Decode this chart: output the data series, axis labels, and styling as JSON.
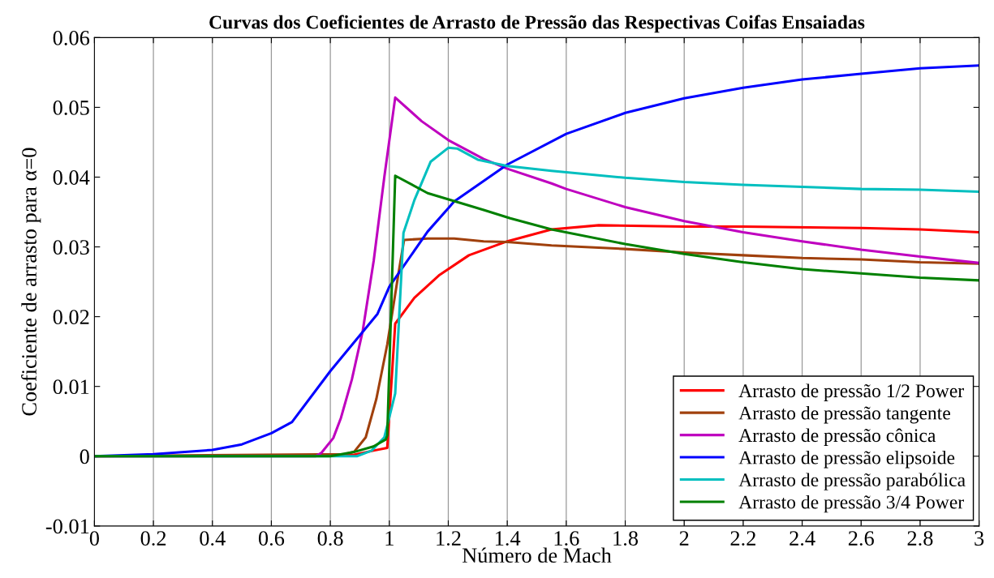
{
  "chart_data": {
    "type": "line",
    "title": "Curvas dos Coeficientes de Arrasto de Pressão das Respectivas Coifas Ensaiadas",
    "xlabel": "Número de Mach",
    "ylabel": "Coeficiente de arrasto para α=0",
    "xlim": [
      0,
      3
    ],
    "ylim": [
      -0.01,
      0.06
    ],
    "xticks": [
      0,
      0.2,
      0.4,
      0.6,
      0.8,
      1,
      1.2,
      1.4,
      1.6,
      1.8,
      2,
      2.2,
      2.4,
      2.6,
      2.8,
      3
    ],
    "yticks": [
      -0.01,
      0,
      0.01,
      0.02,
      0.03,
      0.04,
      0.05,
      0.06
    ],
    "grid": "x",
    "legend": "bottom right",
    "line_style": "solid",
    "marker": "none",
    "series": [
      {
        "name": "Arrasto de pressão 1/2 Power",
        "color": "#ff0000",
        "x": [
          0,
          0.85,
          0.88,
          0.946,
          0.993,
          1.02,
          1.085,
          1.168,
          1.27,
          1.4,
          1.55,
          1.71,
          2.0,
          2.2,
          2.6,
          2.8,
          3.0
        ],
        "values": [
          0,
          0.0001,
          0.0002,
          0.0008,
          0.0012,
          0.019,
          0.0227,
          0.0259,
          0.0288,
          0.0308,
          0.0325,
          0.0331,
          0.0329,
          0.0329,
          0.0327,
          0.0325,
          0.0321
        ]
      },
      {
        "name": "Arrasto de pressão tangente",
        "color": "#a0400c",
        "x": [
          0,
          0.85,
          0.88,
          0.92,
          0.956,
          0.993,
          1.03,
          1.05,
          1.13,
          1.22,
          1.32,
          1.4,
          1.55,
          1.8,
          2.0,
          2.2,
          2.4,
          2.6,
          2.8,
          3.0
        ],
        "values": [
          0,
          0.0003,
          0.0006,
          0.0027,
          0.0082,
          0.016,
          0.0259,
          0.031,
          0.0312,
          0.0312,
          0.0308,
          0.0307,
          0.0302,
          0.0297,
          0.0292,
          0.0288,
          0.0284,
          0.0282,
          0.0278,
          0.0276
        ]
      },
      {
        "name": "Arrasto de pressão cônica",
        "color": "#bf00bf",
        "x": [
          0,
          0.75,
          0.77,
          0.81,
          0.836,
          0.873,
          0.91,
          0.947,
          0.983,
          1.02,
          1.11,
          1.2,
          1.32,
          1.4,
          1.55,
          1.6,
          1.8,
          2.0,
          2.2,
          2.4,
          2.6,
          2.8,
          3.0
        ],
        "values": [
          0,
          0,
          0.0005,
          0.0026,
          0.0055,
          0.011,
          0.018,
          0.028,
          0.04,
          0.0514,
          0.048,
          0.0453,
          0.0426,
          0.0412,
          0.0391,
          0.0383,
          0.0357,
          0.0337,
          0.0321,
          0.0308,
          0.0296,
          0.0286,
          0.0277
        ]
      },
      {
        "name": "Arrasto de pressão elipsoide",
        "color": "#0000ff",
        "x": [
          0,
          0.2,
          0.4,
          0.5,
          0.6,
          0.67,
          0.8,
          0.96,
          1.0,
          1.13,
          1.22,
          1.4,
          1.6,
          1.8,
          2.0,
          2.2,
          2.4,
          2.6,
          2.8,
          3.0
        ],
        "values": [
          0,
          0.0003,
          0.0009,
          0.0017,
          0.0033,
          0.0049,
          0.0122,
          0.0204,
          0.0243,
          0.0322,
          0.0365,
          0.0418,
          0.0462,
          0.0492,
          0.0513,
          0.0528,
          0.054,
          0.0548,
          0.0556,
          0.056
        ]
      },
      {
        "name": "Arrasto de pressão parabólica",
        "color": "#00bfbf",
        "x": [
          0,
          0.89,
          0.94,
          0.983,
          1.02,
          1.048,
          1.085,
          1.14,
          1.2,
          1.23,
          1.3,
          1.4,
          1.55,
          1.8,
          2.0,
          2.2,
          2.4,
          2.6,
          2.8,
          3.0
        ],
        "values": [
          0,
          0,
          0.0008,
          0.0027,
          0.009,
          0.032,
          0.0367,
          0.0422,
          0.0442,
          0.0441,
          0.0425,
          0.0416,
          0.0409,
          0.0399,
          0.0393,
          0.0389,
          0.0386,
          0.0383,
          0.0382,
          0.0379
        ]
      },
      {
        "name": "Arrasto de pressão 3/4 Power",
        "color": "#008000",
        "x": [
          0,
          0.8,
          0.88,
          0.946,
          0.988,
          0.993,
          1.02,
          1.13,
          1.24,
          1.32,
          1.41,
          1.55,
          1.8,
          2.0,
          2.2,
          2.4,
          2.6,
          2.8,
          3.0
        ],
        "values": [
          0,
          0,
          0.0006,
          0.0014,
          0.0024,
          0.003,
          0.0402,
          0.0377,
          0.0363,
          0.0353,
          0.0341,
          0.0325,
          0.0304,
          0.029,
          0.0278,
          0.0268,
          0.0262,
          0.0256,
          0.0252
        ]
      }
    ]
  }
}
